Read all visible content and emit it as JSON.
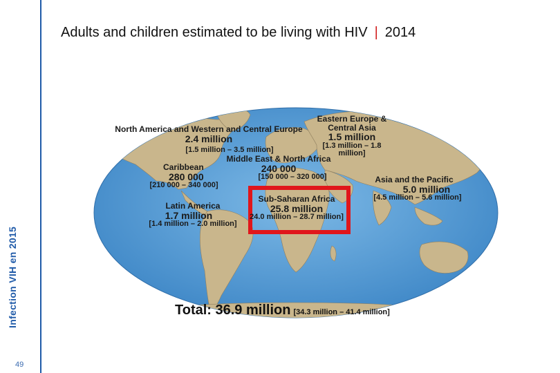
{
  "slide": {
    "title": "Adults and children estimated to be living with HIV",
    "title_separator": "|",
    "year": "2014",
    "side_label": "Infection VIH en 2015",
    "page_number": "49"
  },
  "regions": [
    {
      "name": "North America and Western and Central Europe",
      "value": "2.4 million",
      "range": "[1.5 million – 3.5 million]"
    },
    {
      "name": "Eastern Europe & Central Asia",
      "value": "1.5 million",
      "range": "[1.3 million – 1.8 million]"
    },
    {
      "name": "Middle East & North Africa",
      "value": "240 000",
      "range": "[150 000 – 320 000]"
    },
    {
      "name": "Caribbean",
      "value": "280 000",
      "range": "[210 000 – 340 000]"
    },
    {
      "name": "Asia and the Pacific",
      "value": "5.0 million",
      "range": "[4.5 million – 5.6 million]"
    },
    {
      "name": "Latin America",
      "value": "1.7 million",
      "range": "[1.4 million – 2.0 million]"
    },
    {
      "name": "Sub-Saharan Africa",
      "value": "25.8 million",
      "range": "24.0 million – 28.7 million]"
    }
  ],
  "total": {
    "label": "Total: 36.9 million",
    "range": "[34.3 million – 41.4 million]"
  },
  "colors": {
    "ocean": "#4f9bd6",
    "land": "#c9b68c",
    "highlight": "#e0161b",
    "sidebar": "#1f5aa8"
  }
}
